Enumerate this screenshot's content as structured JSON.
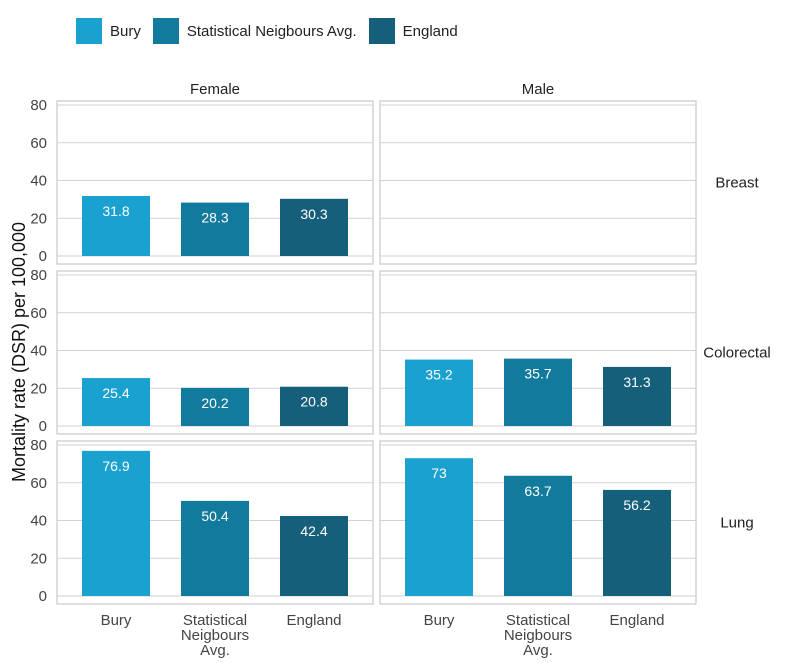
{
  "legend": {
    "items": [
      {
        "label": "Bury",
        "color": "#1aa1cf"
      },
      {
        "label": "Statistical Neigbours Avg.",
        "color": "#127a9c"
      },
      {
        "label": "England",
        "color": "#155f7b"
      }
    ]
  },
  "chart_data": {
    "type": "bar",
    "ylabel": "Mortality rate (DSR) per 100,000",
    "ylim": [
      0,
      80
    ],
    "yticks": [
      0,
      20,
      40,
      60,
      80
    ],
    "grid": true,
    "legend_position": "top",
    "columns": [
      "Female",
      "Male"
    ],
    "rows": [
      "Breast",
      "Colorectal",
      "Lung"
    ],
    "categories": [
      "Bury",
      "Statistical Neigbours Avg.",
      "England"
    ],
    "category_tick_lines": [
      [
        "Bury"
      ],
      [
        "Statistical",
        "Neigbours",
        "Avg."
      ],
      [
        "England"
      ]
    ],
    "panels": [
      {
        "row": "Breast",
        "column": "Female",
        "values": [
          31.8,
          28.3,
          30.3
        ],
        "labels": [
          "31.8",
          "28.3",
          "30.3"
        ]
      },
      {
        "row": "Breast",
        "column": "Male",
        "values": [],
        "labels": []
      },
      {
        "row": "Colorectal",
        "column": "Female",
        "values": [
          25.4,
          20.2,
          20.8
        ],
        "labels": [
          "25.4",
          "20.2",
          "20.8"
        ]
      },
      {
        "row": "Colorectal",
        "column": "Male",
        "values": [
          35.2,
          35.7,
          31.3
        ],
        "labels": [
          "35.2",
          "35.7",
          "31.3"
        ]
      },
      {
        "row": "Lung",
        "column": "Female",
        "values": [
          76.9,
          50.4,
          42.4
        ],
        "labels": [
          "76.9",
          "50.4",
          "42.4"
        ]
      },
      {
        "row": "Lung",
        "column": "Male",
        "values": [
          73,
          63.7,
          56.2
        ],
        "labels": [
          "73",
          "63.7",
          "56.2"
        ]
      }
    ]
  }
}
